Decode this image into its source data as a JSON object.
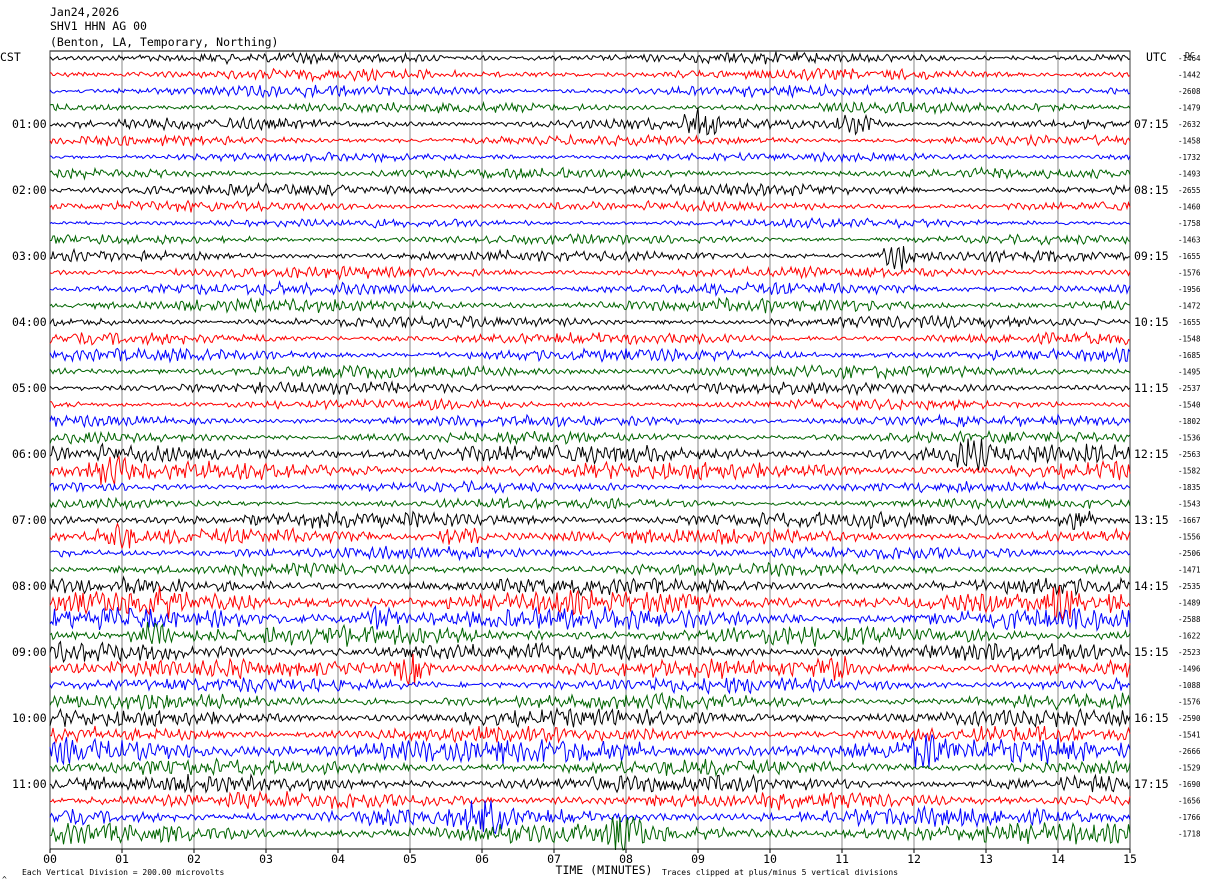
{
  "header": {
    "date": "Jan24,2026",
    "station": "SHV1 HHN AG 00",
    "location": "(Benton, LA, Temporary, Northing)"
  },
  "labels": {
    "left_timezone": "CST",
    "right_timezone": "UTC",
    "dc_header": "DC",
    "xlabel": "TIME (MINUTES)",
    "scale_note": "Each Vertical Division =  200.00 microvolts",
    "clip_note": "Traces clipped at plus/minus 5 vertical divisions",
    "corner_mark": "^"
  },
  "chart_data": {
    "type": "line",
    "title": "Jan24,2026",
    "xlabel": "TIME (MINUTES)",
    "x_ticks": [
      "00",
      "01",
      "02",
      "03",
      "04",
      "05",
      "06",
      "07",
      "08",
      "09",
      "10",
      "11",
      "12",
      "13",
      "14",
      "15"
    ],
    "xlim": [
      0,
      15
    ],
    "minutes_per_trace": 15,
    "grid": true,
    "trace_colors": [
      "#000000",
      "#ff0000",
      "#0000ff",
      "#006400"
    ],
    "left_hour_labels": [
      "01:00",
      "02:00",
      "03:00",
      "04:00",
      "05:00",
      "06:00",
      "07:00",
      "08:00",
      "09:00",
      "10:00",
      "11:00"
    ],
    "right_hour_labels": [
      "07:15",
      "08:15",
      "09:15",
      "10:15",
      "11:15",
      "12:15",
      "13:15",
      "14:15",
      "15:15",
      "16:15",
      "17:15"
    ],
    "dc_offsets": [
      "-1464",
      "-1442",
      "-2608",
      "-1479",
      "-2632",
      "-1458",
      "-1732",
      "-1493",
      "-2655",
      "-1460",
      "-1758",
      "-1463",
      "-1655",
      "-1576",
      "-1956",
      "-1472",
      "-1655",
      "-1548",
      "-1685",
      "-1495",
      "-2537",
      "-1540",
      "-1802",
      "-1536",
      "-2563",
      "-1582",
      "-1835",
      "-1543",
      "-1667",
      "-1556",
      "-2506",
      "-1471",
      "-2535",
      "-1489",
      "-2588",
      "-1622",
      "-2523",
      "-1496",
      "-1088",
      "-1576",
      "-2590",
      "-1541",
      "-2666",
      "-1529",
      "-1690",
      "-1656",
      "-1766",
      "-1718"
    ],
    "trace_amplitude_divisions": [
      1.0,
      1.0,
      1.0,
      0.9,
      1.0,
      0.9,
      0.8,
      0.9,
      1.0,
      0.9,
      0.8,
      0.8,
      1.0,
      1.0,
      1.1,
      1.2,
      1.0,
      1.0,
      1.1,
      1.1,
      1.1,
      0.9,
      1.0,
      1.0,
      1.6,
      1.6,
      0.9,
      0.9,
      1.4,
      1.4,
      1.1,
      1.1,
      1.4,
      1.9,
      2.0,
      1.7,
      1.6,
      1.6,
      1.3,
      1.4,
      1.5,
      1.4,
      2.2,
      1.4,
      1.5,
      1.5,
      1.6,
      1.7
    ],
    "events": [
      {
        "trace": 4,
        "minute": 9.0,
        "amp": 3.0
      },
      {
        "trace": 4,
        "minute": 11.2,
        "amp": 2.5
      },
      {
        "trace": 12,
        "minute": 11.8,
        "amp": 2.4
      },
      {
        "trace": 24,
        "minute": 12.8,
        "amp": 2.5
      },
      {
        "trace": 25,
        "minute": 0.8,
        "amp": 3.0
      },
      {
        "trace": 28,
        "minute": 14.3,
        "amp": 3.0
      },
      {
        "trace": 29,
        "minute": 0.9,
        "amp": 3.0
      },
      {
        "trace": 29,
        "minute": 5.7,
        "amp": 2.6
      },
      {
        "trace": 33,
        "minute": 1.5,
        "amp": 2.6
      },
      {
        "trace": 33,
        "minute": 14.0,
        "amp": 2.6
      },
      {
        "trace": 34,
        "minute": 4.6,
        "amp": 2.6
      },
      {
        "trace": 35,
        "minute": 1.4,
        "amp": 2.6
      },
      {
        "trace": 37,
        "minute": 5.05,
        "amp": 3.2
      },
      {
        "trace": 37,
        "minute": 10.9,
        "amp": 2.8
      },
      {
        "trace": 42,
        "minute": 12.2,
        "amp": 2.6
      },
      {
        "trace": 46,
        "minute": 6.05,
        "amp": 3.8
      },
      {
        "trace": 47,
        "minute": 8.0,
        "amp": 4.0
      }
    ]
  }
}
